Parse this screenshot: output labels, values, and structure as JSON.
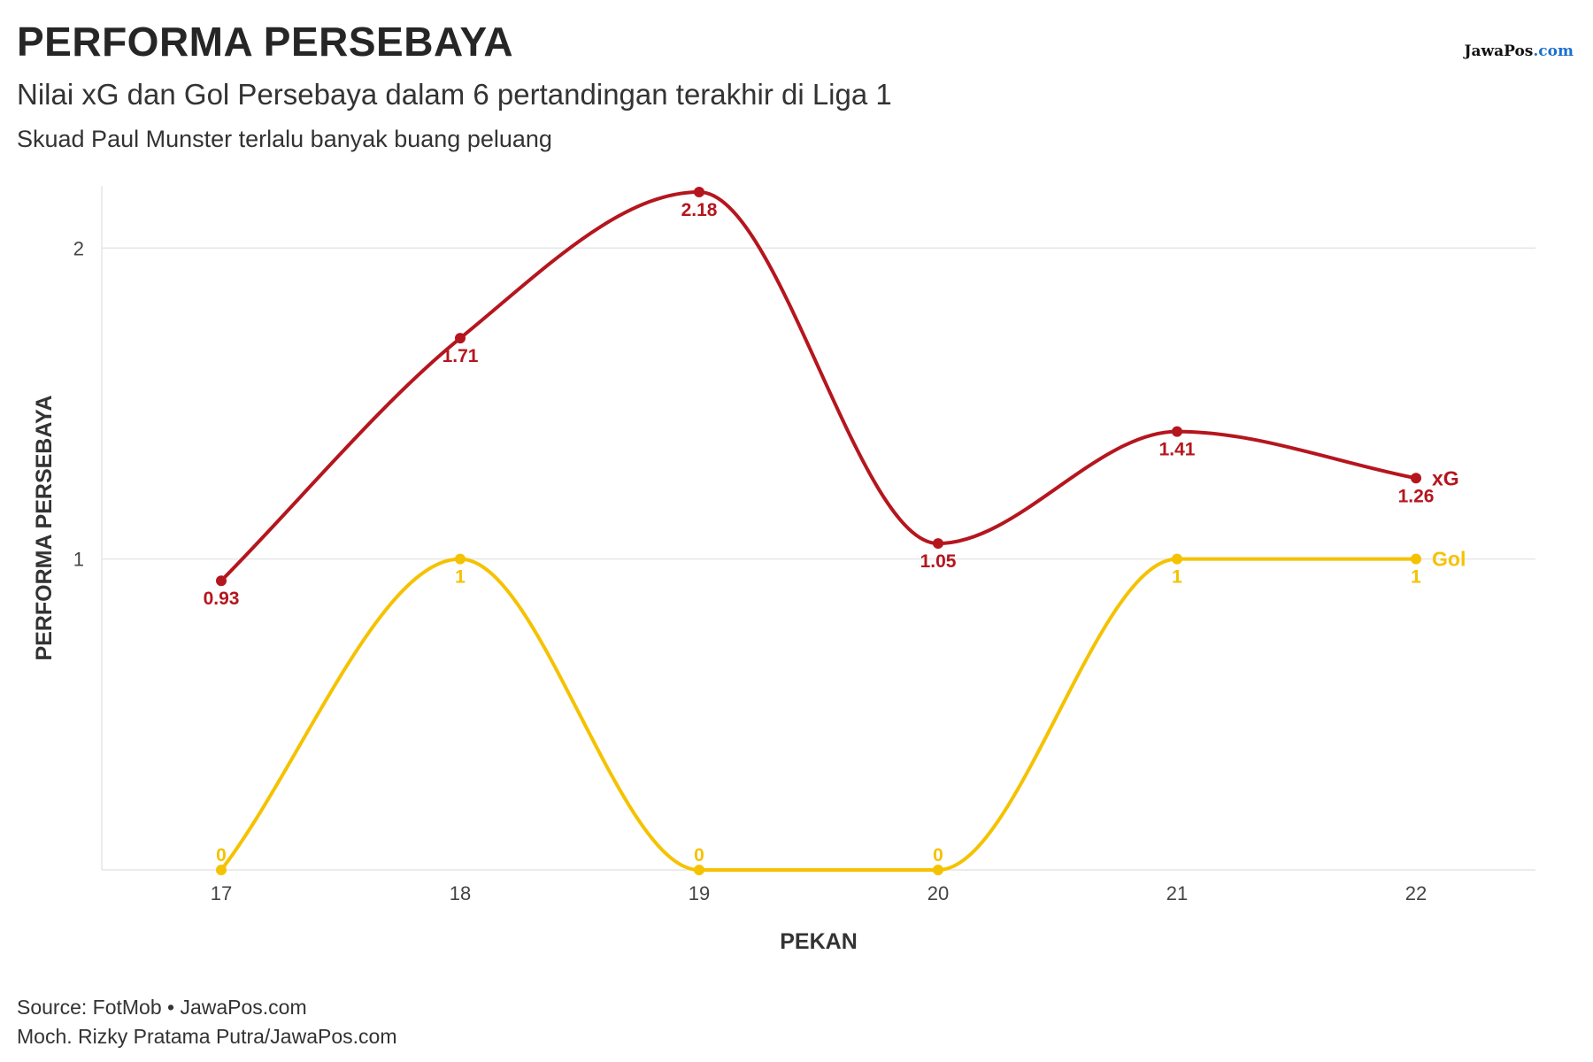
{
  "header": {
    "title": "PERFORMA PERSEBAYA",
    "subtitle": "Nilai xG dan Gol Persebaya dalam 6 pertandingan terakhir di Liga 1",
    "caption": "Skuad Paul Munster terlalu banyak buang peluang",
    "brand_main": "JawaPos",
    "brand_suffix": ".com"
  },
  "footer": {
    "source": "Source: FotMob • JawaPos.com",
    "credit": "Moch. Rizky Pratama Putra/JawaPos.com"
  },
  "colors": {
    "xg": "#b5161e",
    "gol": "#f5c200",
    "grid": "#e6e6e6"
  },
  "chart_data": {
    "type": "line",
    "xlabel": "PEKAN",
    "ylabel": "PERFORMA PERSEBAYA",
    "x": [
      17,
      18,
      19,
      20,
      21,
      22
    ],
    "xlim": [
      16.5,
      22.5
    ],
    "ylim": [
      0,
      2.2
    ],
    "yticks": [
      1,
      2
    ],
    "grid": true,
    "legend": "end-of-line labels",
    "series": [
      {
        "name": "xG",
        "values": [
          0.93,
          1.71,
          2.18,
          1.05,
          1.41,
          1.26
        ],
        "labels": [
          "0.93",
          "1.71",
          "2.18",
          "1.05",
          "1.41",
          "1.26"
        ]
      },
      {
        "name": "Gol",
        "values": [
          0,
          1,
          0,
          0,
          1,
          1
        ],
        "labels": [
          "0",
          "1",
          "0",
          "0",
          "1",
          "1"
        ]
      }
    ]
  }
}
